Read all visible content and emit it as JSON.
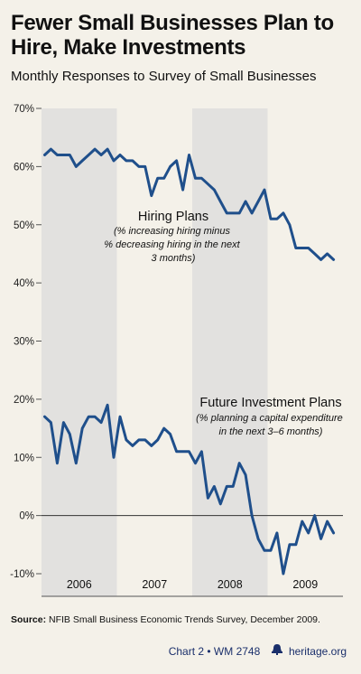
{
  "header": {
    "title": "Fewer Small Businesses Plan to Hire, Make Investments",
    "subtitle": "Monthly Responses to Survey of Small Businesses"
  },
  "footer": {
    "source_label": "Source:",
    "source_text": "NFIB Small Business Economic Trends Survey, December 2009.",
    "chart_id": "Chart 2 • WM 2748",
    "site": "heritage.org",
    "bell_icon": "liberty-bell-icon"
  },
  "colors": {
    "background": "#f4f1e9",
    "band": "#e2e1df",
    "line": "#1f4f8b",
    "footer_text": "#1a2f6b"
  },
  "chart_data": {
    "type": "line",
    "ylim": [
      -10,
      70
    ],
    "yticks": [
      "70%",
      "60%",
      "50%",
      "40%",
      "30%",
      "20%",
      "10%",
      "0%",
      "-10%"
    ],
    "ytick_values": [
      70,
      60,
      50,
      40,
      30,
      20,
      10,
      0,
      -10
    ],
    "year_labels": [
      "2006",
      "2007",
      "2008",
      "2009"
    ],
    "shaded_years": [
      "2006",
      "2008"
    ],
    "series": [
      {
        "name": "Hiring Plans",
        "note": "(% increasing hiring minus % decreasing hiring in the next 3 months)",
        "values": [
          62,
          63,
          62,
          62,
          62,
          60,
          61,
          62,
          63,
          62,
          63,
          61,
          62,
          61,
          61,
          60,
          60,
          55,
          58,
          58,
          60,
          61,
          56,
          62,
          58,
          58,
          57,
          56,
          54,
          52,
          52,
          52,
          54,
          52,
          54,
          56,
          51,
          51,
          52,
          50,
          46,
          46,
          46,
          45,
          44,
          45,
          44
        ]
      },
      {
        "name": "Future Investment Plans",
        "note": "(% planning a capital expenditure in the next 3–6 months)",
        "values": [
          17,
          16,
          9,
          16,
          14,
          9,
          15,
          17,
          17,
          16,
          19,
          10,
          17,
          13,
          12,
          13,
          13,
          12,
          13,
          15,
          14,
          11,
          11,
          11,
          9,
          11,
          3,
          5,
          2,
          5,
          5,
          9,
          7,
          0,
          -4,
          -6,
          -6,
          -3,
          -10,
          -5,
          -5,
          -1,
          -3,
          0,
          -4,
          -1,
          -3
        ]
      }
    ]
  }
}
